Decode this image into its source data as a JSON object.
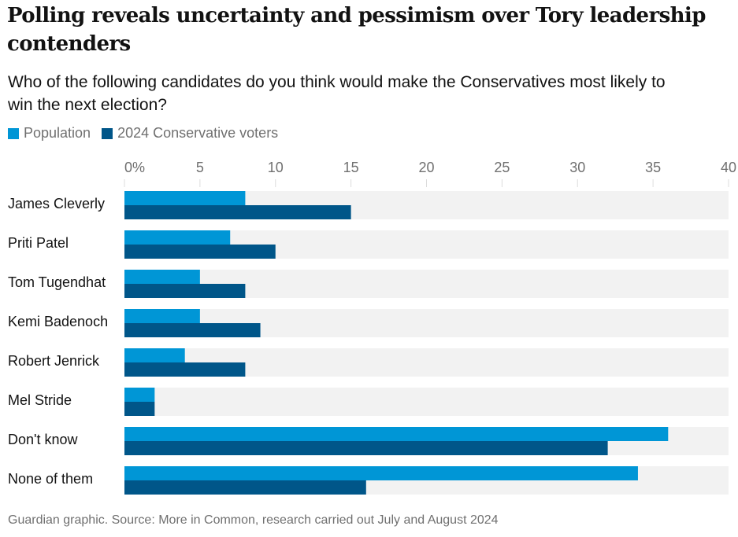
{
  "title": "Polling reveals uncertainty and pessimism over Tory leadership contenders",
  "subtitle": "Who of the following candidates do you think would make the Conservatives most likely to win the next election?",
  "source": "Guardian graphic. Source: More in Common, research carried out July and August 2024",
  "colors": {
    "population": "#0096d6",
    "conservative": "#005689",
    "track": "#f2f2f2",
    "tick": "#dcdcdc"
  },
  "chart_data": {
    "type": "bar",
    "orientation": "horizontal",
    "categories": [
      "James Cleverly",
      "Priti Patel",
      "Tom Tugendhat",
      "Kemi Badenoch",
      "Robert Jenrick",
      "Mel Stride",
      "Don't know",
      "None of them"
    ],
    "series": [
      {
        "name": "Population",
        "color": "#0096d6",
        "values": [
          8,
          7,
          5,
          5,
          4,
          2,
          36,
          34
        ]
      },
      {
        "name": "2024 Conservative voters",
        "color": "#005689",
        "values": [
          15,
          10,
          8,
          9,
          8,
          2,
          32,
          16
        ]
      }
    ],
    "xlim": [
      0,
      40
    ],
    "ticks": [
      0,
      5,
      10,
      15,
      20,
      25,
      30,
      35,
      40
    ],
    "tick_labels": [
      "0%",
      "5",
      "10",
      "15",
      "20",
      "25",
      "30",
      "35",
      "40"
    ],
    "legend_position": "top-left"
  }
}
